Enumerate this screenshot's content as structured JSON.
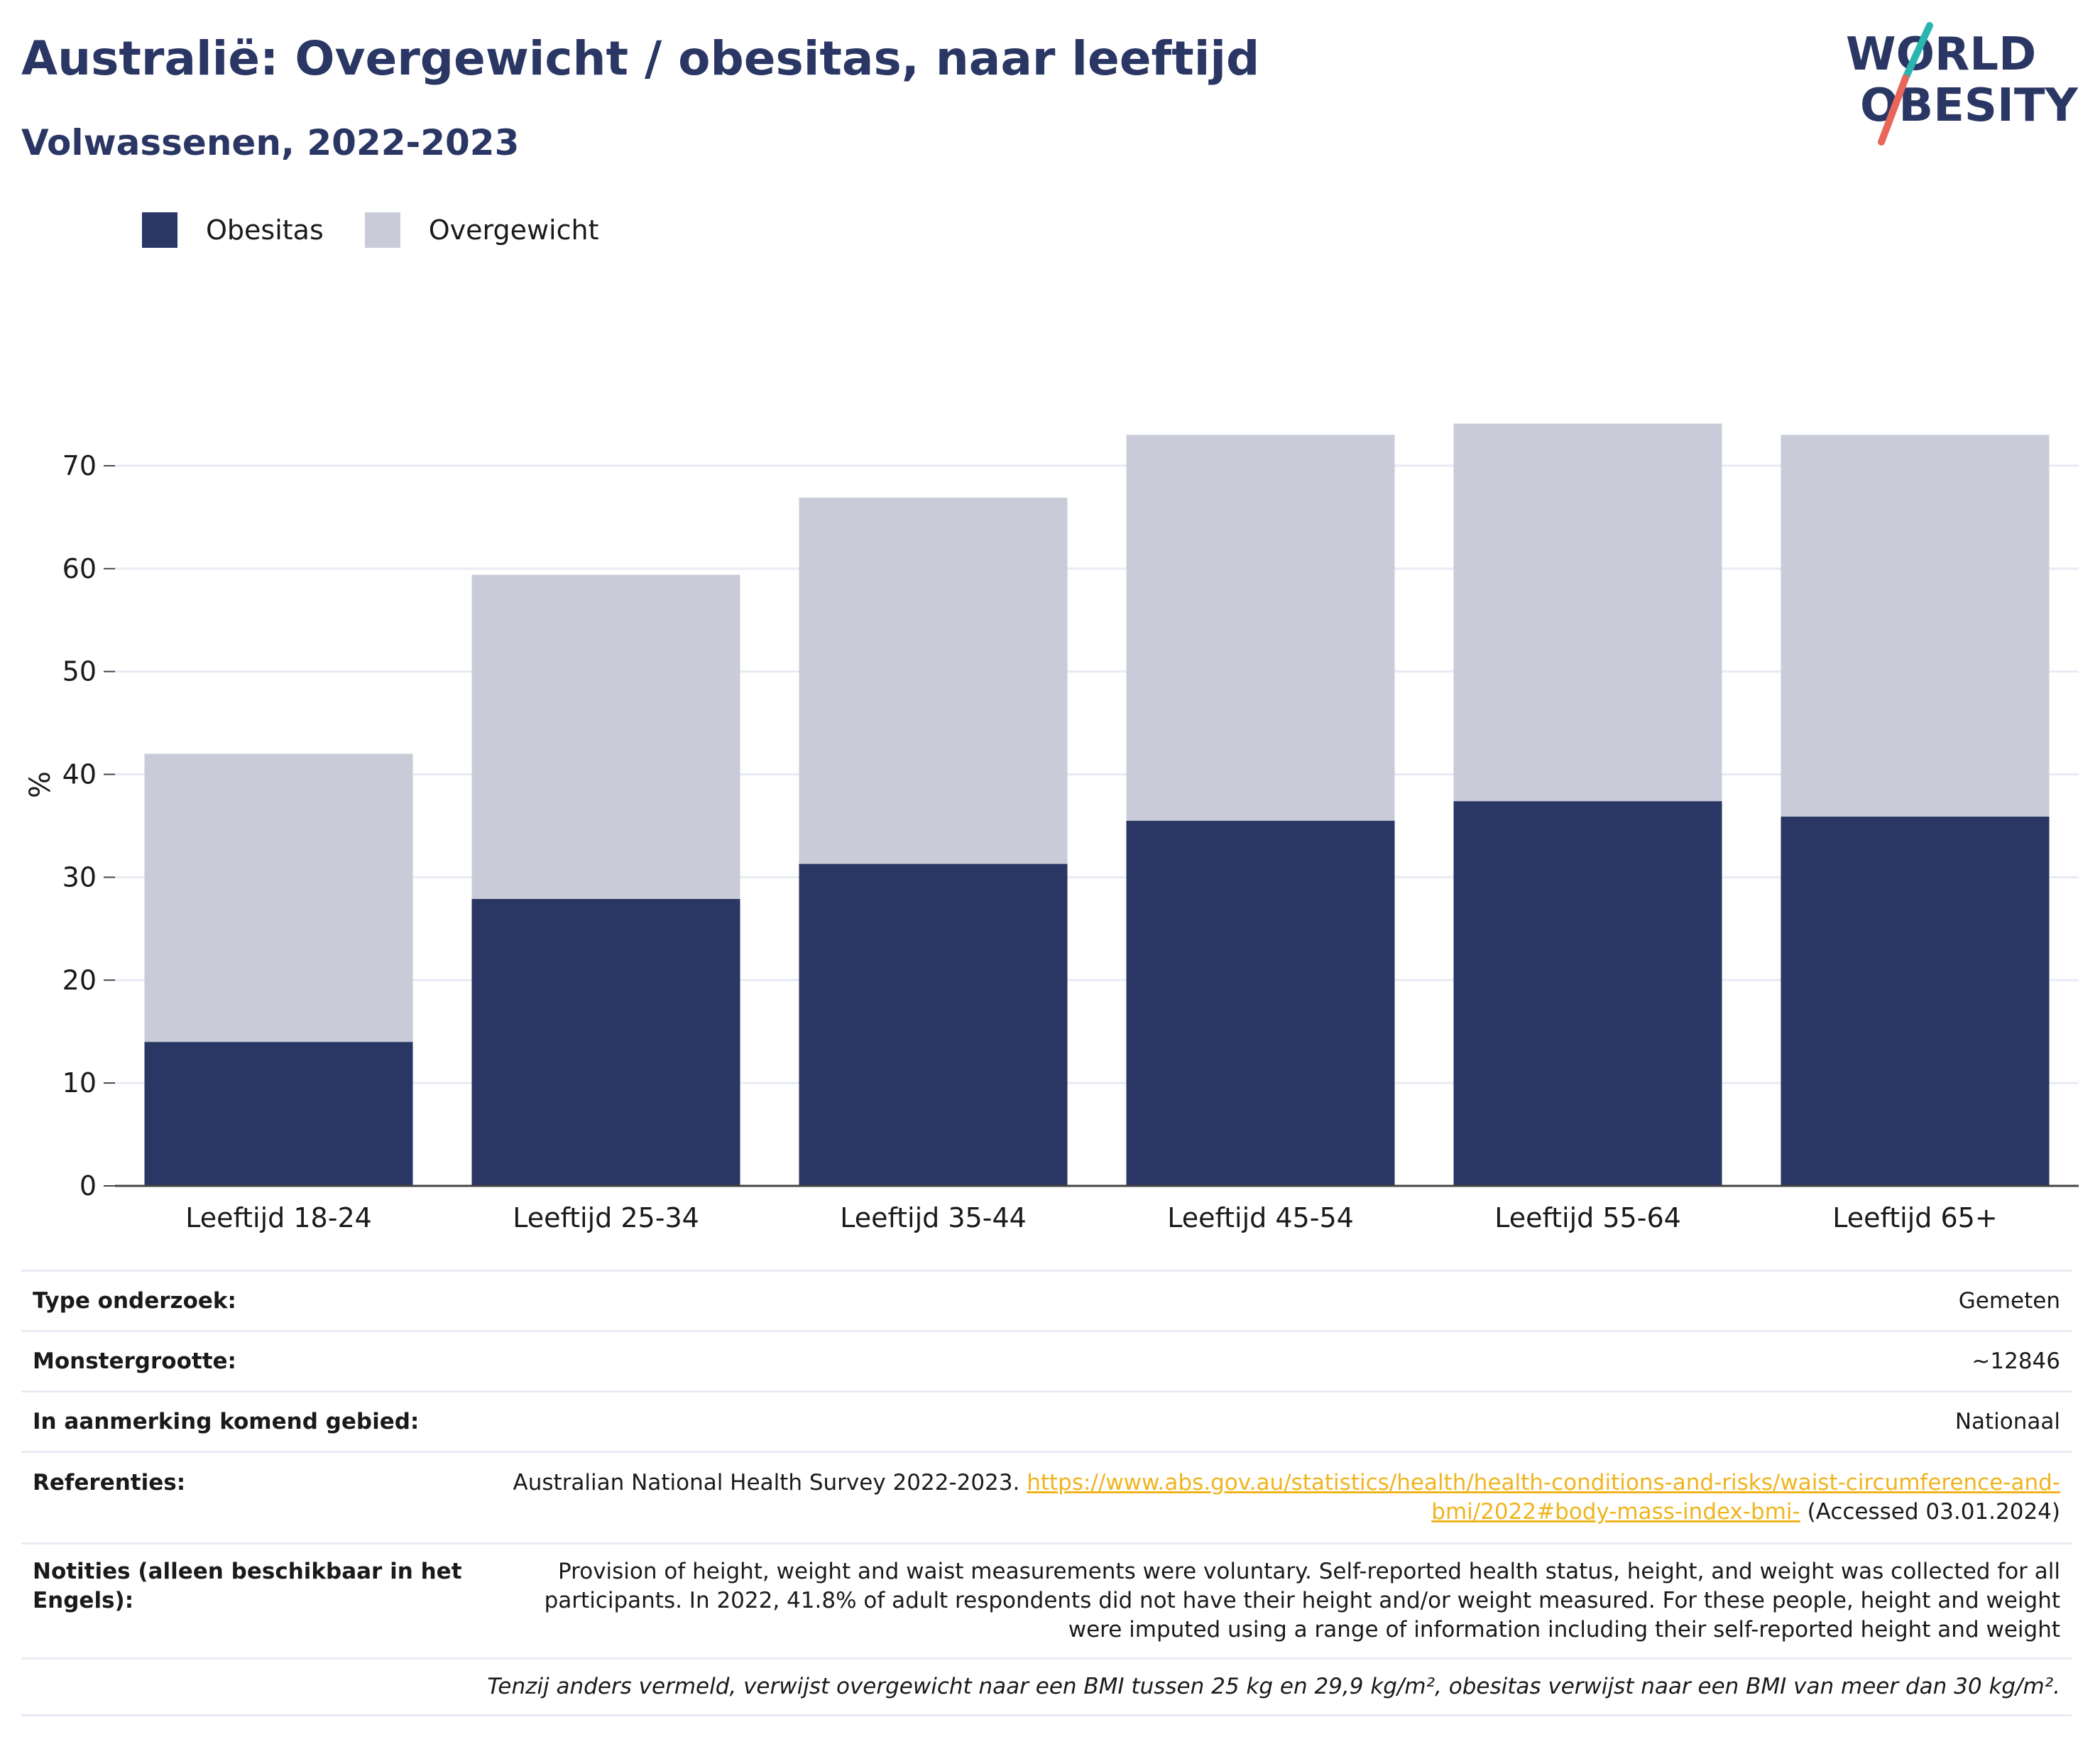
{
  "title": "Australië: Overgewicht / obesitas, naar leeftijd",
  "subtitle": "Volwassenen, 2022-2023",
  "logo": {
    "line1": "WORLD",
    "line2": "OBESITY"
  },
  "colors": {
    "title": "#2a3663",
    "obesity": "#2a3663",
    "overweight": "#c9ccd8",
    "link": "#f0b41e",
    "logo_slash_teal": "#2bb5b0",
    "logo_slash_coral": "#e8665a"
  },
  "legend": [
    {
      "label": "Obesitas",
      "color": "#2a3663"
    },
    {
      "label": "Overgewicht",
      "color": "#c9ccd8"
    }
  ],
  "chart_data": {
    "type": "bar",
    "stacked": true,
    "categories": [
      "Leeftijd 18-24",
      "Leeftijd 25-34",
      "Leeftijd 35-44",
      "Leeftijd 45-54",
      "Leeftijd 55-64",
      "Leeftijd 65+"
    ],
    "series": [
      {
        "name": "Obesitas",
        "color": "#2a3663",
        "values": [
          14.0,
          27.9,
          31.3,
          35.5,
          37.4,
          35.9
        ]
      },
      {
        "name": "Overgewicht",
        "color": "#c9ccd8",
        "values": [
          28.0,
          31.5,
          35.6,
          37.5,
          36.7,
          37.1
        ]
      }
    ],
    "totals": [
      42.0,
      59.4,
      66.9,
      73.0,
      74.1,
      73.0
    ],
    "ylabel": "%",
    "yticks": [
      0,
      10,
      20,
      30,
      40,
      50,
      60,
      70
    ],
    "ylim": [
      0,
      78
    ],
    "grid": true,
    "legend_position": "top-left"
  },
  "info": {
    "rows": [
      {
        "key": "Type onderzoek:",
        "value": "Gemeten"
      },
      {
        "key": "Monstergrootte:",
        "value": "~12846"
      },
      {
        "key": "In aanmerking komend gebied:",
        "value": "Nationaal"
      }
    ],
    "references": {
      "key": "Referenties:",
      "prefix": "Australian National Health Survey 2022-2023. ",
      "link": "https://www.abs.gov.au/statistics/health/health-conditions-and-risks/waist-circumference-and-bmi/2022#body-mass-index-bmi-",
      "suffix": " (Accessed 03.01.2024)"
    },
    "notes": {
      "key": "Notities (alleen beschikbaar in het Engels):",
      "value": "Provision of height, weight and waist measurements were voluntary. Self-reported health status, height, and weight was collected for all participants. In 2022, 41.8% of adult respondents did not have their height and/or weight measured. For these people, height and weight were imputed using a range of information including their self-reported height and weight"
    },
    "footnote": "Tenzij anders vermeld, verwijst overgewicht naar een BMI tussen 25 kg en 29,9 kg/m², obesitas verwijst naar een BMI van meer dan 30 kg/m²."
  }
}
